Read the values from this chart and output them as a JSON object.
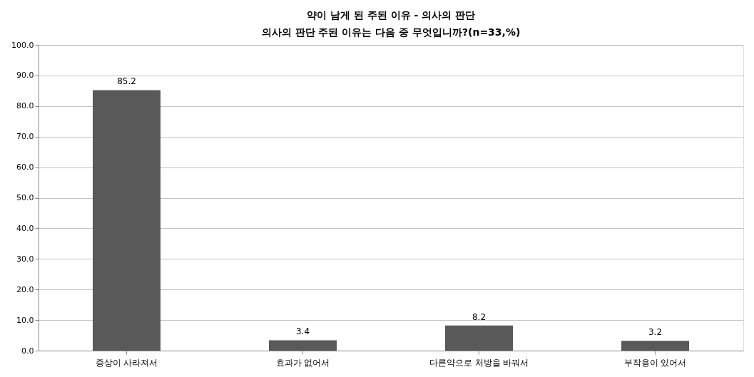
{
  "chart_data": {
    "type": "bar",
    "title": "약이 남게 된 주된 이유 - 의사의 판단",
    "subtitle": "의사의 판단 주된 이유는 다음 중 무엇입니까?(n=33,%)",
    "categories": [
      "증상이 사라져서",
      "효과가 없어서",
      "다른약으로 처방을 바꿔서",
      "부작용이 있어서"
    ],
    "values": [
      85.2,
      3.4,
      8.2,
      3.2
    ],
    "color": "#595959",
    "ylim": [
      0,
      100
    ],
    "yticks": [
      {
        "value": 0,
        "label": "0.0"
      },
      {
        "value": 10,
        "label": "10.0"
      },
      {
        "value": 20,
        "label": "20.0"
      },
      {
        "value": 30,
        "label": "30.0"
      },
      {
        "value": 40,
        "label": "40.0"
      },
      {
        "value": 50,
        "label": "50.0"
      },
      {
        "value": 60,
        "label": "60.0"
      },
      {
        "value": 70,
        "label": "70.0"
      },
      {
        "value": 80,
        "label": "80.0"
      },
      {
        "value": 90,
        "label": "90.0"
      },
      {
        "value": 100,
        "label": "100.0"
      }
    ],
    "grid": "y",
    "data_labels": true
  }
}
